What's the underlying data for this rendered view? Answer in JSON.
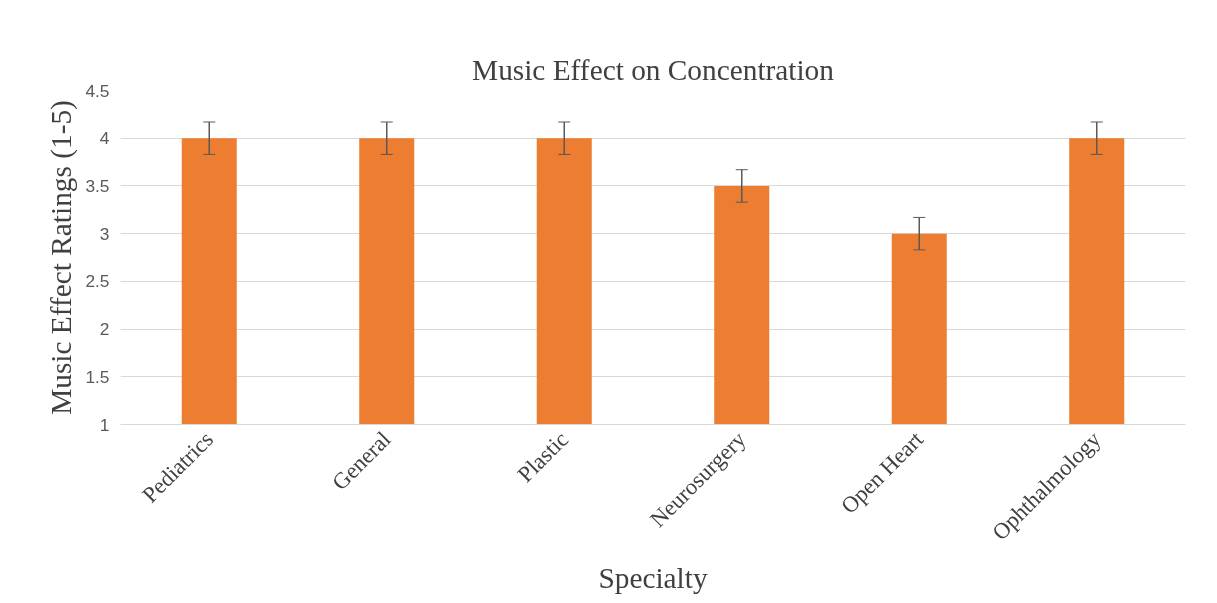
{
  "chart_data": {
    "type": "bar",
    "title": "Music Effect on Concentration",
    "xlabel": "Specialty",
    "ylabel": "Music Effect Ratings (1-5)",
    "categories": [
      "Pediatrics",
      "General",
      "Plastic",
      "Neurosurgery",
      "Open Heart",
      "Ophthalmology"
    ],
    "values": [
      4,
      4,
      4,
      3.5,
      3,
      4
    ],
    "errors": [
      0.17,
      0.17,
      0.17,
      0.17,
      0.17,
      0.17
    ],
    "color": "#ed7d31",
    "ylim": [
      1,
      4.5
    ],
    "yticks": [
      1,
      1.5,
      2,
      2.5,
      3,
      3.5,
      4,
      4.5
    ],
    "grid": "y"
  }
}
